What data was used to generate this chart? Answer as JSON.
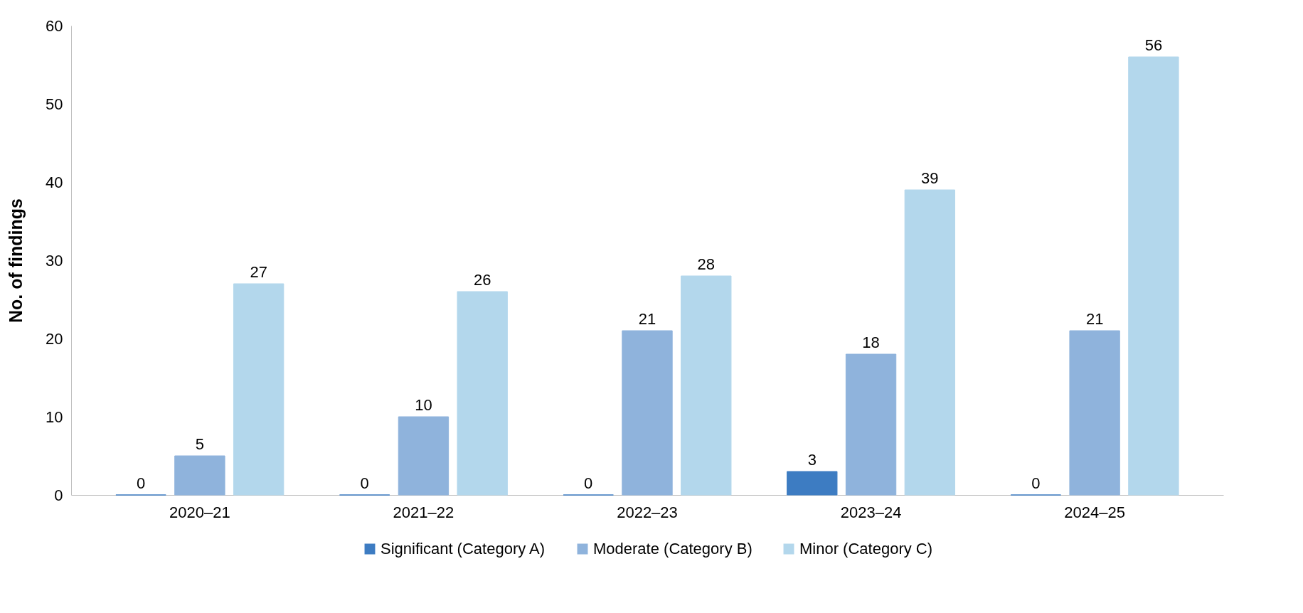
{
  "chart_data": {
    "type": "bar",
    "ylabel": "No. of findings",
    "categories": [
      "2020–21",
      "2021–22",
      "2022–23",
      "2023–24",
      "2024–25"
    ],
    "series": [
      {
        "name": "Significant (Category A)",
        "color": "#3d7cc2",
        "values": [
          0,
          0,
          0,
          3,
          0
        ]
      },
      {
        "name": "Moderate (Category B)",
        "color": "#8fb3dc",
        "values": [
          5,
          10,
          21,
          18,
          21
        ]
      },
      {
        "name": "Minor (Category C)",
        "color": "#b3d7ec",
        "values": [
          27,
          26,
          28,
          39,
          56
        ]
      }
    ],
    "ylim": [
      0,
      60
    ],
    "yticks": [
      0,
      10,
      20,
      30,
      40,
      50,
      60
    ],
    "grid": false,
    "legend": "bottom",
    "data_labels": true
  }
}
